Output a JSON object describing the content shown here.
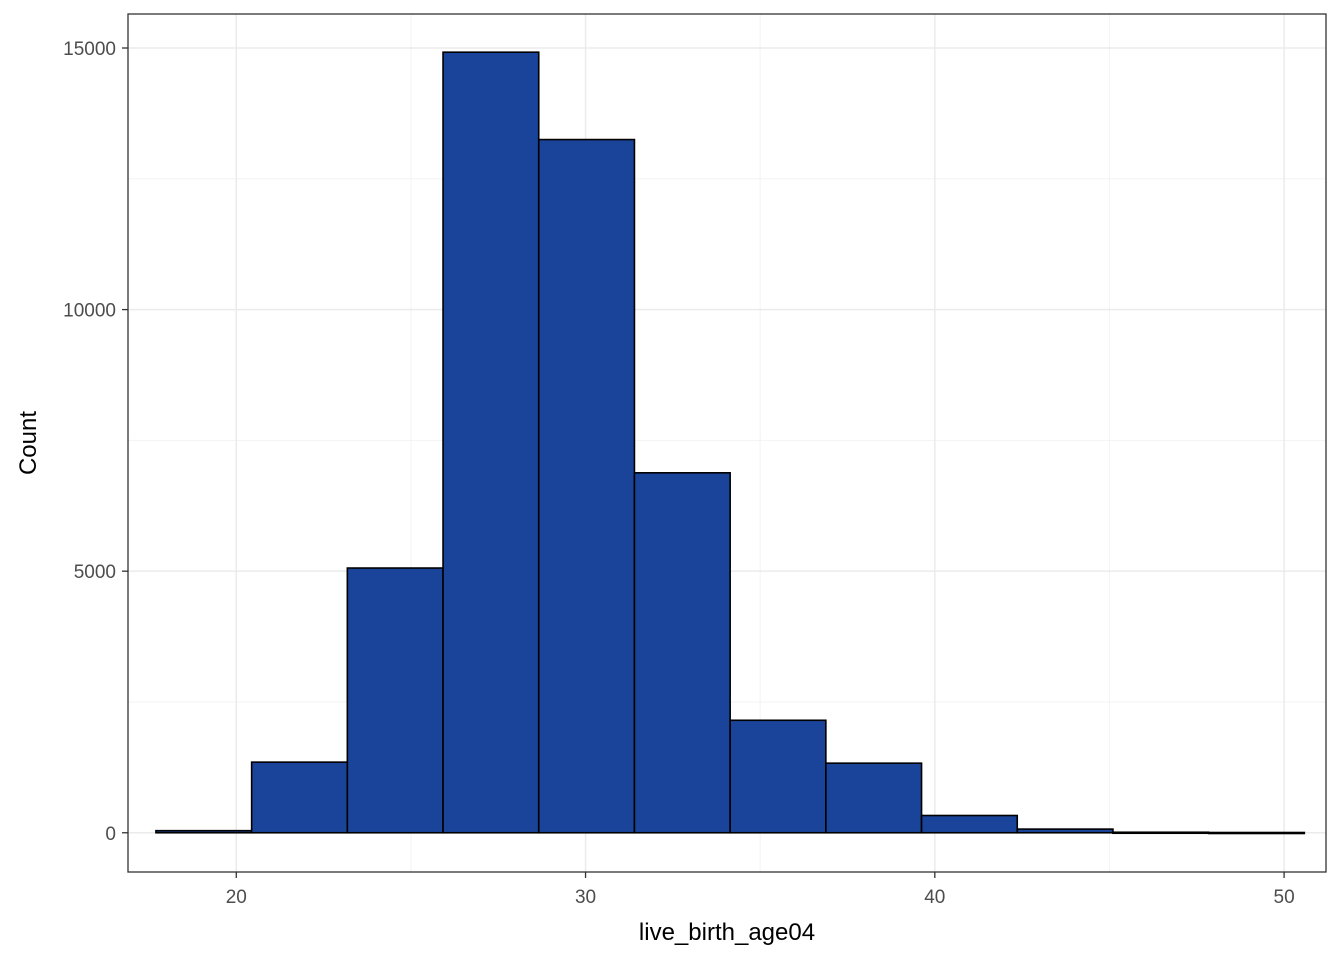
{
  "colors": {
    "bar_fill": "#1a4499",
    "bar_outline": "#000000",
    "grid_major": "#ebebeb",
    "grid_minor": "#f3f3f3",
    "panel_border": "#333333",
    "background": "#ffffff"
  },
  "chart_data": {
    "type": "bar",
    "subtype": "histogram",
    "title": "",
    "xlabel": "live_birth_age04",
    "ylabel": "Count",
    "x_ticks": [
      20,
      30,
      40,
      50
    ],
    "y_ticks": [
      0,
      5000,
      10000,
      15000
    ],
    "x_tick_labels": [
      "20",
      "30",
      "40",
      "50"
    ],
    "y_tick_labels": [
      "0",
      "5000",
      "10000",
      "15000"
    ],
    "xlim": [
      16.9,
      51.2
    ],
    "ylim": [
      -750,
      15650
    ],
    "grid": true,
    "legend": "none",
    "bins": [
      {
        "x_start": 17.7,
        "x_end": 20.44,
        "count": 40
      },
      {
        "x_start": 20.44,
        "x_end": 23.18,
        "count": 1350
      },
      {
        "x_start": 23.18,
        "x_end": 25.92,
        "count": 5060
      },
      {
        "x_start": 25.92,
        "x_end": 28.66,
        "count": 14920
      },
      {
        "x_start": 28.66,
        "x_end": 31.4,
        "count": 13250
      },
      {
        "x_start": 31.4,
        "x_end": 34.14,
        "count": 6880
      },
      {
        "x_start": 34.14,
        "x_end": 36.88,
        "count": 2150
      },
      {
        "x_start": 36.88,
        "x_end": 39.62,
        "count": 1330
      },
      {
        "x_start": 39.62,
        "x_end": 42.36,
        "count": 330
      },
      {
        "x_start": 42.36,
        "x_end": 45.1,
        "count": 70
      },
      {
        "x_start": 45.1,
        "x_end": 47.84,
        "count": 10
      },
      {
        "x_start": 47.84,
        "x_end": 50.58,
        "count": 5
      }
    ]
  }
}
